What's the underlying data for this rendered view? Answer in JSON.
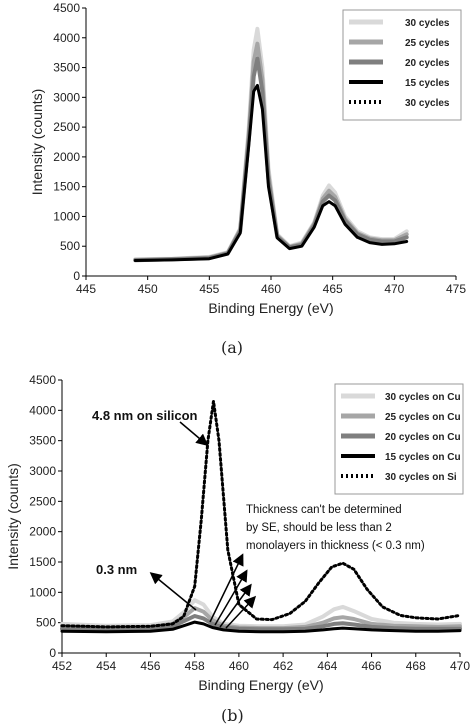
{
  "colors": {
    "c30": "#d9d9d9",
    "c25": "#a6a6a6",
    "c20": "#7f7f7f",
    "c15": "#000000",
    "si": "#000000"
  },
  "chart_data": [
    {
      "type": "line",
      "caption": "(a)",
      "xlabel": "Binding Energy (eV)",
      "ylabel": "Intensity (counts)",
      "xlim": [
        445,
        475
      ],
      "ylim": [
        0,
        4500
      ],
      "xticks": [
        445,
        450,
        455,
        460,
        465,
        470,
        475
      ],
      "yticks": [
        0,
        500,
        1000,
        1500,
        2000,
        2500,
        3000,
        3500,
        4000,
        4500
      ],
      "legend": "top-right",
      "series": [
        {
          "name": "30 cycles",
          "style": "c30",
          "width": 4,
          "dash": false,
          "x": [
            449,
            452,
            455,
            456.5,
            457.5,
            458.2,
            458.6,
            458.9,
            459.3,
            459.8,
            460.5,
            461.5,
            462.5,
            463.5,
            464.2,
            464.7,
            465.2,
            466,
            467,
            468,
            469,
            470,
            471
          ],
          "y": [
            280,
            290,
            320,
            400,
            800,
            2500,
            3800,
            4150,
            3500,
            1800,
            700,
            500,
            560,
            900,
            1350,
            1520,
            1400,
            1000,
            750,
            650,
            620,
            620,
            750
          ]
        },
        {
          "name": "25 cycles",
          "style": "c25",
          "width": 4,
          "dash": false,
          "x": [
            449,
            452,
            455,
            456.5,
            457.5,
            458.2,
            458.6,
            458.9,
            459.3,
            459.8,
            460.5,
            461.5,
            462.5,
            463.5,
            464.2,
            464.7,
            465.2,
            466,
            467,
            468,
            469,
            470,
            471
          ],
          "y": [
            270,
            285,
            310,
            390,
            780,
            2400,
            3600,
            3900,
            3300,
            1700,
            680,
            490,
            540,
            880,
            1300,
            1430,
            1330,
            960,
            720,
            630,
            600,
            600,
            700
          ]
        },
        {
          "name": "20 cycles",
          "style": "c20",
          "width": 4,
          "dash": false,
          "x": [
            449,
            452,
            455,
            456.5,
            457.5,
            458.2,
            458.6,
            458.9,
            459.3,
            459.8,
            460.5,
            461.5,
            462.5,
            463.5,
            464.2,
            464.7,
            465.2,
            466,
            467,
            468,
            469,
            470,
            471
          ],
          "y": [
            265,
            280,
            300,
            380,
            750,
            2300,
            3350,
            3650,
            3100,
            1600,
            660,
            480,
            520,
            850,
            1250,
            1350,
            1270,
            930,
            700,
            610,
            580,
            580,
            650
          ]
        },
        {
          "name": "15 cycles",
          "style": "c15",
          "width": 3,
          "dash": false,
          "x": [
            449,
            452,
            455,
            456.5,
            457.5,
            458.2,
            458.6,
            458.9,
            459.3,
            459.8,
            460.5,
            461.5,
            462.5,
            463.5,
            464.2,
            464.7,
            465.2,
            466,
            467,
            468,
            469,
            470,
            471
          ],
          "y": [
            260,
            270,
            290,
            370,
            720,
            2200,
            3100,
            3200,
            2800,
            1500,
            640,
            460,
            500,
            820,
            1180,
            1250,
            1180,
            870,
            650,
            560,
            530,
            540,
            580
          ]
        },
        {
          "name": "30 cycles",
          "style": "si",
          "width": 3,
          "dash": true,
          "x": [],
          "y": []
        }
      ]
    },
    {
      "type": "line",
      "caption": "(b)",
      "xlabel": "Binding Energy (eV)",
      "ylabel": "Intensity (counts)",
      "xlim": [
        452,
        470
      ],
      "ylim": [
        0,
        4500
      ],
      "xticks": [
        452,
        454,
        456,
        458,
        460,
        462,
        464,
        466,
        468,
        470
      ],
      "yticks": [
        0,
        500,
        1000,
        1500,
        2000,
        2500,
        3000,
        3500,
        4000,
        4500
      ],
      "legend": "top-right",
      "annotations": [
        "4.8 nm on silicon",
        "0.3 nm",
        "Thickness can't be determined",
        "by SE, should be less than 2",
        "monolayers in thickness (< 0.3 nm)"
      ],
      "series": [
        {
          "name": "30 cycles on Cu",
          "style": "c30",
          "width": 4,
          "dash": false,
          "x": [
            452,
            454,
            456,
            457,
            457.6,
            458,
            458.4,
            458.8,
            459.3,
            460,
            461,
            462,
            463,
            463.8,
            464.3,
            464.7,
            465.2,
            466,
            467,
            468,
            469,
            470
          ],
          "y": [
            480,
            450,
            460,
            520,
            700,
            870,
            800,
            600,
            480,
            450,
            440,
            440,
            470,
            600,
            720,
            760,
            690,
            560,
            500,
            480,
            470,
            480
          ]
        },
        {
          "name": "25 cycles on Cu",
          "style": "c25",
          "width": 4,
          "dash": false,
          "x": [
            452,
            454,
            456,
            457,
            457.6,
            458,
            458.4,
            458.8,
            459.3,
            460,
            461,
            462,
            463,
            463.8,
            464.3,
            464.7,
            465.2,
            466,
            467,
            468,
            469,
            470
          ],
          "y": [
            440,
            420,
            430,
            480,
            620,
            740,
            680,
            540,
            450,
            420,
            410,
            410,
            430,
            500,
            570,
            590,
            560,
            480,
            450,
            440,
            430,
            440
          ]
        },
        {
          "name": "20 cycles on Cu",
          "style": "c20",
          "width": 4,
          "dash": false,
          "x": [
            452,
            454,
            456,
            457,
            457.6,
            458,
            458.4,
            458.8,
            459.3,
            460,
            461,
            462,
            463,
            463.8,
            464.3,
            464.7,
            465.2,
            466,
            467,
            468,
            469,
            470
          ],
          "y": [
            400,
            390,
            400,
            440,
            540,
            610,
            570,
            480,
            420,
            400,
            390,
            390,
            400,
            440,
            480,
            490,
            470,
            430,
            410,
            400,
            400,
            400
          ]
        },
        {
          "name": "15 cycles on Cu",
          "style": "c15",
          "width": 3,
          "dash": false,
          "x": [
            452,
            454,
            456,
            457,
            457.6,
            458,
            458.4,
            458.8,
            459.3,
            460,
            461,
            462,
            463,
            463.8,
            464.3,
            464.7,
            465.2,
            466,
            467,
            468,
            469,
            470
          ],
          "y": [
            360,
            350,
            360,
            390,
            460,
            510,
            480,
            420,
            380,
            360,
            350,
            350,
            360,
            380,
            400,
            410,
            400,
            380,
            370,
            360,
            360,
            370
          ]
        },
        {
          "name": "30 cycles on Si",
          "style": "si",
          "width": 3,
          "dash": true,
          "x": [
            452,
            454,
            456,
            457,
            457.5,
            458,
            458.3,
            458.6,
            458.85,
            459.1,
            459.5,
            460,
            460.8,
            461.5,
            462.3,
            463,
            463.6,
            464.2,
            464.7,
            465.2,
            465.8,
            466.5,
            467.3,
            468,
            469,
            470
          ],
          "y": [
            450,
            430,
            440,
            480,
            600,
            1100,
            2200,
            3500,
            4150,
            3500,
            1700,
            800,
            560,
            550,
            650,
            850,
            1150,
            1420,
            1480,
            1380,
            1050,
            760,
            620,
            580,
            560,
            620
          ]
        }
      ]
    }
  ]
}
